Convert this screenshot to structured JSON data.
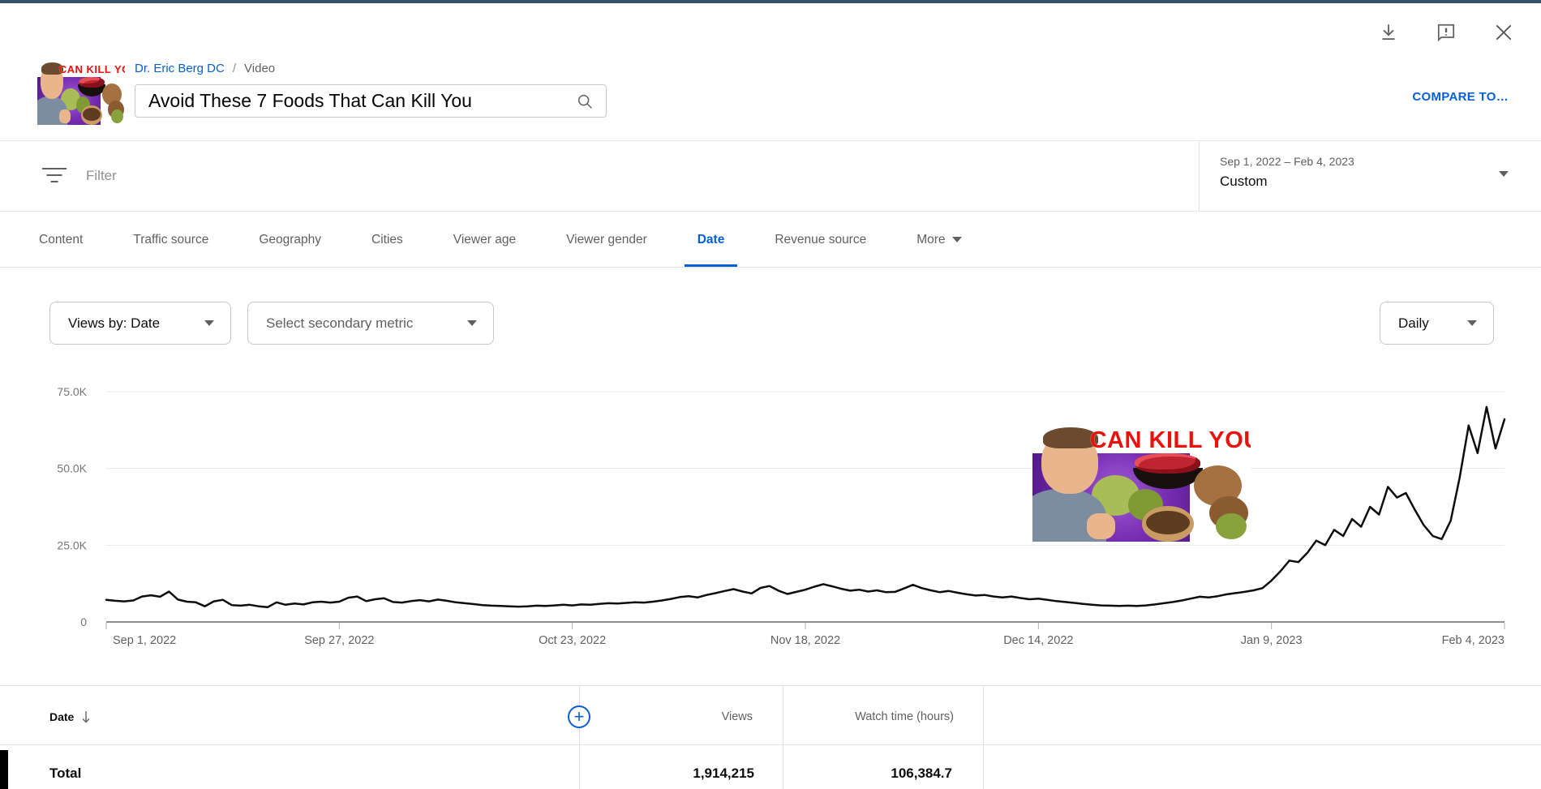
{
  "header": {
    "breadcrumb": {
      "channel": "Dr. Eric Berg DC",
      "separator": "/",
      "section": "Video"
    },
    "search_value": "Avoid These 7 Foods That Can Kill You",
    "compare_label": "COMPARE TO…"
  },
  "filter": {
    "label": "Filter"
  },
  "date_range": {
    "range": "Sep 1, 2022 – Feb 4, 2023",
    "preset": "Custom"
  },
  "tabs": {
    "items": [
      {
        "label": "Content",
        "active": false
      },
      {
        "label": "Traffic source",
        "active": false
      },
      {
        "label": "Geography",
        "active": false
      },
      {
        "label": "Cities",
        "active": false
      },
      {
        "label": "Viewer age",
        "active": false
      },
      {
        "label": "Viewer gender",
        "active": false
      },
      {
        "label": "Date",
        "active": true
      },
      {
        "label": "Revenue source",
        "active": false
      },
      {
        "label": "More",
        "active": false
      }
    ]
  },
  "controls": {
    "primary_metric": "Views by: Date",
    "secondary_metric": "Select secondary metric",
    "granularity": "Daily"
  },
  "thumbnail": {
    "overlay_text": "CAN KILL YOU",
    "header_text": "CAN KILL YO"
  },
  "chart_data": {
    "type": "line",
    "title": "Daily views, Sep 1 2022 - Feb 4 2023",
    "xlabel": "",
    "ylabel": "Views",
    "x_start": "Sep 1, 2022",
    "x_end": "Feb 4, 2023",
    "x_tick_labels": [
      "Sep 1, 2022",
      "Sep 27, 2022",
      "Oct 23, 2022",
      "Nov 18, 2022",
      "Dec 14, 2022",
      "Jan 9, 2023",
      "Feb 4, 2023"
    ],
    "x_tick_days": [
      0,
      26,
      52,
      78,
      104,
      130,
      156
    ],
    "y_ticks": [
      0,
      25000,
      50000,
      75000
    ],
    "y_tick_labels": [
      "0",
      "25.0K",
      "50.0K",
      "75.0K"
    ],
    "ylim": [
      0,
      75000
    ],
    "grid": "horizontal",
    "legend": "none",
    "series": [
      {
        "name": "Views",
        "values": [
          7200,
          6900,
          6700,
          7000,
          8300,
          8700,
          8200,
          9900,
          7300,
          6600,
          6400,
          5100,
          6700,
          7200,
          5500,
          5300,
          5600,
          5100,
          4800,
          6400,
          5600,
          6000,
          5700,
          6400,
          6600,
          6300,
          6600,
          7900,
          8300,
          6800,
          7400,
          7700,
          6500,
          6300,
          6800,
          7100,
          6700,
          7300,
          6900,
          6400,
          6100,
          5800,
          5500,
          5300,
          5200,
          5100,
          5000,
          5100,
          5300,
          5200,
          5400,
          5600,
          5400,
          5700,
          5600,
          5900,
          6100,
          6000,
          6200,
          6400,
          6300,
          6600,
          7000,
          7500,
          8100,
          8400,
          8000,
          8800,
          9400,
          10100,
          10700,
          9900,
          9300,
          11100,
          11700,
          10200,
          9100,
          9800,
          10500,
          11500,
          12300,
          11600,
          10800,
          10200,
          10500,
          9900,
          10300,
          9700,
          9800,
          10900,
          12100,
          11000,
          10300,
          9700,
          10100,
          9500,
          9000,
          8600,
          8800,
          8300,
          8000,
          8300,
          7800,
          7400,
          7600,
          7200,
          6800,
          6500,
          6200,
          5900,
          5600,
          5400,
          5300,
          5200,
          5300,
          5200,
          5400,
          5700,
          6100,
          6500,
          7000,
          7600,
          8200,
          8000,
          8400,
          9000,
          9400,
          9800,
          10300,
          11000,
          13500,
          16500,
          20000,
          19500,
          22500,
          26500,
          25000,
          30000,
          28000,
          33500,
          31000,
          37500,
          35000,
          44000,
          40500,
          42000,
          36500,
          31500,
          28000,
          27000,
          33000,
          47000,
          64000,
          55000,
          70000,
          56500,
          66000
        ]
      }
    ]
  },
  "table": {
    "columns": {
      "c1": "Date",
      "c2": "Views",
      "c3": "Watch time (hours)"
    },
    "total_row": {
      "label": "Total",
      "views": "1,914,215",
      "watch_time_hours": "106,384.7"
    }
  },
  "icons": {
    "download-icon": "arrow-down-with-bar",
    "feedback-icon": "speech-bubble-exclamation",
    "close-icon": "x",
    "search-icon": "magnifier",
    "filter-icon": "funnel-lines",
    "caret-down-icon": "filled-triangle",
    "add-column-icon": "circled-plus",
    "sort-desc-icon": "arrow-down"
  },
  "colors": {
    "accent": "#065fd4",
    "topbar": "#35536f",
    "chart_line": "#0d0d0d",
    "grid": "#e7e7e7",
    "baseline": "#8f8f8f"
  }
}
